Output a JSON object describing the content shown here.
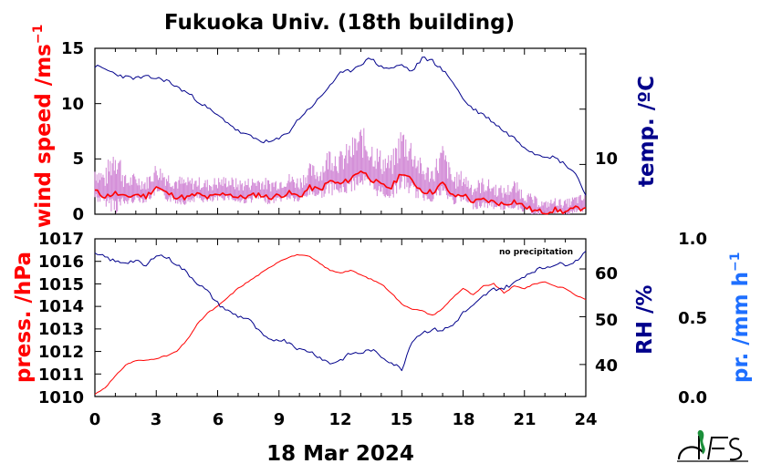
{
  "title": "Fukuoka Univ. (18th building)",
  "date_label": "18 Mar 2024",
  "colors": {
    "wind_mean": "#ff0000",
    "wind_gust": "#d48fd8",
    "temperature": "#00008b",
    "pressure": "#ff0000",
    "humidity": "#00008b",
    "precip_axis": "#1e6fff",
    "logo_green": "#1b8f3a"
  },
  "chart_data": [
    {
      "type": "line",
      "panel": "top",
      "xlabel": "",
      "x_range": [
        0,
        24
      ],
      "left_axis": {
        "label_main": "wind speed /ms",
        "label_sup": "−1",
        "ylim": [
          0,
          15
        ],
        "ticks": [
          "0",
          "5",
          "10",
          "15"
        ]
      },
      "right_axis": {
        "label": "temp. /ºC",
        "ylim": [
          5.5,
          20.5
        ],
        "ticks": [
          "10"
        ]
      },
      "series": [
        {
          "axis": "left",
          "style": "mean",
          "x": [
            0,
            0.5,
            1,
            1.5,
            2,
            2.5,
            3,
            3.5,
            4,
            4.5,
            5,
            5.5,
            6,
            6.5,
            7,
            7.5,
            8,
            8.5,
            9,
            9.5,
            10,
            10.5,
            11,
            11.5,
            12,
            12.5,
            13,
            13.5,
            14,
            14.5,
            15,
            15.5,
            16,
            16.5,
            17,
            17.5,
            18,
            18.5,
            19,
            19.5,
            20,
            20.5,
            21,
            21.5,
            22,
            22.5,
            23,
            23.5,
            24
          ],
          "values": [
            2.1,
            1.6,
            1.9,
            1.5,
            1.8,
            1.6,
            2.5,
            1.9,
            1.6,
            1.5,
            1.8,
            1.5,
            1.7,
            1.9,
            1.5,
            1.6,
            1.8,
            1.5,
            1.7,
            1.9,
            1.6,
            2.4,
            2.2,
            3.0,
            2.7,
            3.2,
            4.0,
            3.2,
            2.6,
            2.4,
            3.8,
            3.0,
            2.1,
            2.0,
            2.8,
            1.6,
            1.8,
            1.1,
            1.3,
            1.1,
            0.9,
            1.2,
            0.7,
            0.3,
            0.2,
            0.4,
            0.2,
            0.5,
            0.6
          ]
        },
        {
          "axis": "left",
          "style": "gust",
          "x": [
            0,
            0.5,
            1,
            1.5,
            2,
            2.5,
            3,
            3.5,
            4,
            4.5,
            5,
            5.5,
            6,
            6.5,
            7,
            7.5,
            8,
            8.5,
            9,
            9.5,
            10,
            10.5,
            11,
            11.5,
            12,
            12.5,
            13,
            13.5,
            14,
            14.5,
            15,
            15.5,
            16,
            16.5,
            17,
            17.5,
            18,
            18.5,
            19,
            19.5,
            20,
            20.5,
            21,
            21.5,
            22,
            22.5,
            23,
            23.5,
            24
          ],
          "values": [
            4.3,
            3.5,
            6.4,
            3.2,
            3.4,
            3.0,
            4.3,
            3.6,
            3.2,
            3.0,
            3.1,
            2.9,
            3.1,
            3.2,
            2.9,
            3.0,
            3.2,
            2.9,
            3.1,
            3.4,
            3.1,
            4.2,
            4.0,
            5.8,
            5.2,
            6.1,
            7.3,
            6.3,
            5.2,
            4.8,
            7.4,
            6.2,
            4.2,
            4.0,
            5.8,
            3.3,
            3.6,
            2.6,
            3.0,
            2.6,
            2.2,
            2.8,
            1.9,
            1.4,
            1.0,
            1.3,
            1.1,
            1.5,
            1.6
          ]
        },
        {
          "axis": "right",
          "name": "temperature",
          "x": [
            0,
            0.5,
            1,
            1.5,
            2,
            2.5,
            3,
            3.5,
            4,
            4.5,
            5,
            5.5,
            6,
            6.5,
            7,
            7.5,
            8,
            8.5,
            9,
            9.5,
            10,
            10.5,
            11,
            11.5,
            12,
            12.5,
            13,
            13.5,
            14,
            14.5,
            15,
            15.5,
            16,
            16.5,
            17,
            17.5,
            18,
            18.5,
            19,
            19.5,
            20,
            20.5,
            21,
            21.5,
            22,
            22.5,
            23,
            23.5,
            24
          ],
          "values": [
            18.9,
            18.6,
            18.2,
            17.9,
            17.8,
            17.9,
            17.8,
            17.6,
            17.0,
            16.5,
            15.8,
            15.1,
            14.4,
            13.8,
            13.0,
            12.6,
            12.2,
            12.0,
            12.3,
            13.0,
            14.2,
            15.1,
            16.0,
            17.2,
            18.2,
            18.5,
            19.1,
            19.6,
            18.8,
            18.7,
            19.0,
            18.4,
            19.6,
            19.4,
            18.5,
            17.5,
            15.9,
            15.0,
            14.5,
            13.8,
            13.0,
            12.4,
            11.6,
            11.0,
            10.8,
            10.6,
            10.0,
            9.2,
            7.2
          ]
        }
      ]
    },
    {
      "type": "line",
      "panel": "bottom",
      "xlabel": "18 Mar 2024",
      "x_range": [
        0,
        24
      ],
      "x_ticks": [
        "0",
        "3",
        "6",
        "9",
        "12",
        "15",
        "18",
        "21",
        "24"
      ],
      "annotation": "no precipitation",
      "left_axis": {
        "label": "press. /hPa",
        "ylim": [
          1010,
          1017
        ],
        "ticks": [
          "1010",
          "1011",
          "1012",
          "1013",
          "1014",
          "1015",
          "1016",
          "1017"
        ]
      },
      "right_axis": {
        "label": "RH /%",
        "ylim": [
          33.3,
          66.3
        ],
        "ticks": [
          "40",
          "50",
          "60"
        ]
      },
      "far_right_axis": {
        "label_main": "pr. /mm h",
        "label_sup": "−1",
        "ylim": [
          0,
          1
        ],
        "ticks": [
          "0.0",
          "0.5",
          "1.0"
        ]
      },
      "series": [
        {
          "axis": "left",
          "name": "pressure",
          "x": [
            0,
            0.5,
            1,
            1.5,
            2,
            2.5,
            3,
            3.5,
            4,
            4.5,
            5,
            5.5,
            6,
            6.5,
            7,
            7.5,
            8,
            8.5,
            9,
            9.5,
            10,
            10.5,
            11,
            11.5,
            12,
            12.5,
            13,
            13.5,
            14,
            14.5,
            15,
            15.5,
            16,
            16.5,
            17,
            17.5,
            18,
            18.5,
            19,
            19.5,
            20,
            20.5,
            21,
            21.5,
            22,
            22.5,
            23,
            23.5,
            24
          ],
          "values": [
            1010.1,
            1010.4,
            1010.9,
            1011.4,
            1011.6,
            1011.6,
            1011.7,
            1011.8,
            1012.0,
            1012.5,
            1013.2,
            1013.7,
            1014.0,
            1014.4,
            1014.8,
            1015.1,
            1015.4,
            1015.7,
            1016.0,
            1016.2,
            1016.3,
            1016.2,
            1015.9,
            1015.6,
            1015.5,
            1015.6,
            1015.4,
            1015.2,
            1015.0,
            1014.6,
            1014.1,
            1013.9,
            1013.8,
            1013.6,
            1013.9,
            1014.4,
            1014.8,
            1014.5,
            1014.9,
            1015.0,
            1014.6,
            1014.9,
            1014.8,
            1015.0,
            1015.1,
            1014.9,
            1014.8,
            1014.5,
            1014.3
          ]
        },
        {
          "axis": "right",
          "name": "humidity",
          "x": [
            0,
            0.5,
            1,
            1.5,
            2,
            2.5,
            3,
            3.5,
            4,
            4.5,
            5,
            5.5,
            6,
            6.5,
            7,
            7.5,
            8,
            8.5,
            9,
            9.5,
            10,
            10.5,
            11,
            11.5,
            12,
            12.5,
            13,
            13.5,
            14,
            14.5,
            15,
            15.5,
            16,
            16.5,
            17,
            17.5,
            18,
            18.5,
            19,
            19.5,
            20,
            20.5,
            21,
            21.5,
            22,
            22.5,
            23,
            23.5,
            24
          ],
          "values": [
            63,
            62.5,
            61.5,
            61.4,
            61.7,
            60.5,
            63.1,
            62.4,
            61.0,
            59.2,
            57.1,
            55.3,
            52.8,
            51.2,
            50.1,
            49.6,
            47.0,
            45.0,
            45.3,
            44.7,
            43.1,
            42.8,
            41.5,
            40.2,
            40.9,
            42.3,
            42.4,
            43.1,
            41.7,
            40.4,
            39.0,
            45.0,
            46.7,
            47.3,
            47.2,
            48.2,
            50.8,
            52.2,
            54.3,
            55.8,
            56.0,
            57.0,
            58.6,
            59.7,
            60.3,
            61.0,
            61.0,
            61.6,
            63.7
          ]
        }
      ]
    }
  ]
}
